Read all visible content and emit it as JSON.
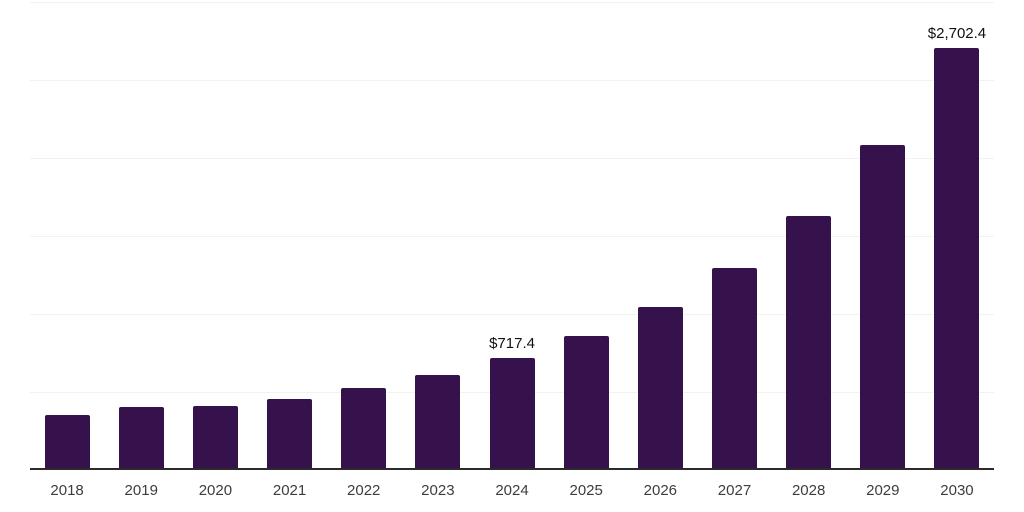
{
  "chart_data": {
    "type": "bar",
    "categories": [
      "2018",
      "2019",
      "2020",
      "2021",
      "2022",
      "2023",
      "2024",
      "2025",
      "2026",
      "2027",
      "2028",
      "2029",
      "2030"
    ],
    "values": [
      352,
      404,
      412,
      457,
      523,
      610,
      717.4,
      858,
      1042,
      1298,
      1629,
      2086,
      2702.4
    ],
    "data_labels": [
      "",
      "",
      "",
      "",
      "",
      "",
      "$717.4",
      "",
      "",
      "",
      "",
      "",
      "$2,702.4"
    ],
    "labeled_points": [
      {
        "category": "2024",
        "label": "$717.4"
      },
      {
        "category": "2030",
        "label": "$2,702.4"
      }
    ],
    "title": "",
    "xlabel": "",
    "ylabel": "",
    "ylim": [
      0,
      3000
    ],
    "gridline_values": [
      500,
      1000,
      1500,
      2000,
      2500,
      3000
    ],
    "grid": "horizontal",
    "legend_position": "none",
    "y_axis_labels_visible": false,
    "colors": {
      "bar": "#35124b",
      "axis_line": "#2b2b2b",
      "gridline": "#f2f2f2",
      "tick_label": "#3d3d3d",
      "data_label": "#111111",
      "background": "#ffffff"
    }
  }
}
